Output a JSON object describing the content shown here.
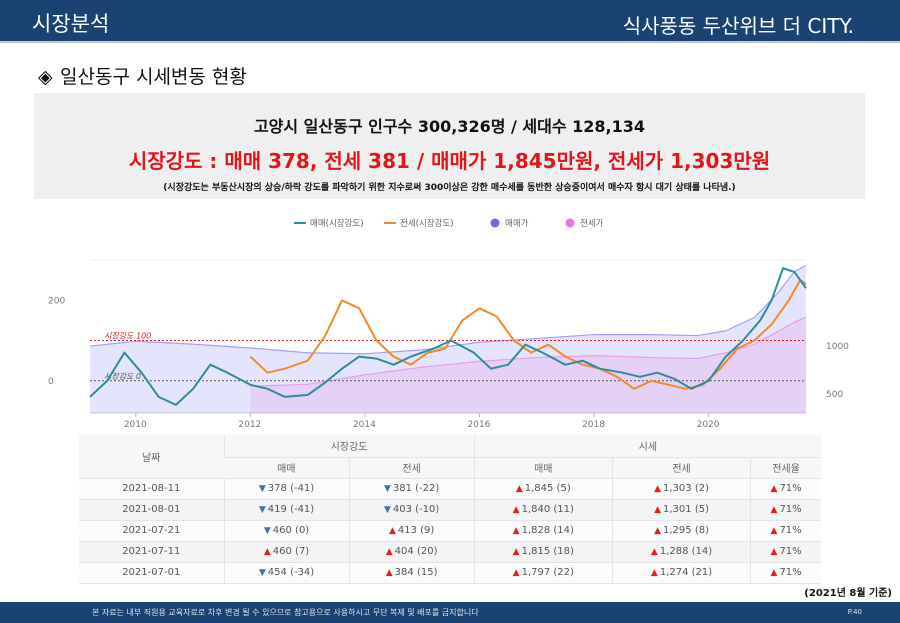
{
  "header": {
    "section": "시장분석",
    "project": "식사풍동 두산위브 더 CITY."
  },
  "subtitle": {
    "bullet": "◈",
    "text": "일산동구 시세변동 현황"
  },
  "summary": {
    "population_line": "고양시 일산동구 인구수 300,326명 / 세대수 128,134",
    "strength_line": "시장강도 : 매매 378, 전세 381 / 매매가 1,845만원, 전세가 1,303만원",
    "note_line": "(시장강도는 부동산시장의 상승/하락 강도를 파악하기 위한 지수로써 300이상은 강한 매수세를 동반한 상승중이여서 매수자 항시 대기 상태를 나타냄.)"
  },
  "chart_data": {
    "type": "line",
    "legend": [
      "매매(시장강도)",
      "전세(시장강도)",
      "매매가",
      "전세가"
    ],
    "x_ticks": [
      "2010",
      "2012",
      "2014",
      "2016",
      "2018",
      "2020"
    ],
    "x_range": [
      2009.2,
      2021.7
    ],
    "left_axis": {
      "ticks": [
        "200",
        "0"
      ],
      "range": [
        -80,
        300
      ]
    },
    "right_axis": {
      "ticks": [
        "1000",
        "500"
      ],
      "range": [
        300,
        1900
      ]
    },
    "reference_lines": [
      {
        "label": "시장강도 100",
        "value": 100,
        "color": "#e02020"
      },
      {
        "label": "시장강도 0",
        "value": 0,
        "color": "#555555"
      }
    ],
    "colors": {
      "sale_strength": "#2e8b9a",
      "jeonse_strength": "#f08a2a",
      "sale_price": "#6a6cf0",
      "jeonse_price": "#e878e0"
    },
    "series": [
      {
        "name": "매매(시장강도)",
        "x": [
          2009.2,
          2009.5,
          2009.8,
          2010.1,
          2010.4,
          2010.7,
          2011.0,
          2011.3,
          2011.6,
          2012.0,
          2012.3,
          2012.6,
          2013.0,
          2013.3,
          2013.6,
          2013.9,
          2014.2,
          2014.5,
          2014.8,
          2015.2,
          2015.5,
          2015.9,
          2016.2,
          2016.5,
          2016.8,
          2017.1,
          2017.5,
          2017.8,
          2018.1,
          2018.5,
          2018.8,
          2019.1,
          2019.4,
          2019.7,
          2020.0,
          2020.3,
          2020.6,
          2020.9,
          2021.1,
          2021.3,
          2021.5,
          2021.7
        ],
        "values": [
          -40,
          0,
          70,
          20,
          -40,
          -60,
          -20,
          40,
          20,
          -10,
          -20,
          -40,
          -35,
          -5,
          30,
          60,
          55,
          40,
          60,
          80,
          100,
          70,
          30,
          40,
          90,
          70,
          40,
          50,
          30,
          20,
          10,
          20,
          5,
          -20,
          0,
          60,
          100,
          150,
          200,
          280,
          270,
          230
        ]
      },
      {
        "name": "전세(시장강도)",
        "x": [
          2012.0,
          2012.3,
          2012.6,
          2013.0,
          2013.3,
          2013.6,
          2013.9,
          2014.2,
          2014.5,
          2014.8,
          2015.1,
          2015.4,
          2015.7,
          2016.0,
          2016.3,
          2016.6,
          2016.9,
          2017.2,
          2017.5,
          2017.8,
          2018.1,
          2018.4,
          2018.7,
          2019.0,
          2019.3,
          2019.6,
          2019.9,
          2020.2,
          2020.5,
          2020.8,
          2021.1,
          2021.4,
          2021.6,
          2021.7
        ],
        "values": [
          60,
          20,
          30,
          50,
          110,
          200,
          180,
          100,
          60,
          40,
          70,
          80,
          150,
          180,
          160,
          100,
          70,
          90,
          60,
          40,
          30,
          10,
          -20,
          0,
          -10,
          -20,
          -10,
          30,
          80,
          100,
          140,
          200,
          250,
          240
        ]
      },
      {
        "name": "매매가",
        "x": [
          2009.2,
          2010.0,
          2011.0,
          2012.0,
          2013.0,
          2014.0,
          2015.0,
          2016.0,
          2017.0,
          2018.0,
          2019.0,
          2019.8,
          2020.3,
          2020.8,
          2021.2,
          2021.5,
          2021.7
        ],
        "values": [
          1000,
          1050,
          1020,
          980,
          930,
          920,
          960,
          1040,
          1080,
          1120,
          1120,
          1110,
          1160,
          1300,
          1550,
          1780,
          1845
        ]
      },
      {
        "name": "전세가",
        "x": [
          2012.0,
          2013.0,
          2014.0,
          2015.0,
          2016.0,
          2017.0,
          2018.0,
          2019.0,
          2019.8,
          2020.3,
          2020.8,
          2021.2,
          2021.5,
          2021.7
        ],
        "values": [
          580,
          600,
          700,
          780,
          840,
          880,
          900,
          880,
          870,
          930,
          1020,
          1150,
          1250,
          1303
        ]
      }
    ]
  },
  "table": {
    "col_date": "날짜",
    "group_strength": "시장강도",
    "group_price": "시세",
    "sub_headers": [
      "매매",
      "전세",
      "매매",
      "전세",
      "전세율"
    ],
    "rows": [
      {
        "date": "2021-08-11",
        "cells": [
          {
            "dir": "down",
            "text": "378 (-41)"
          },
          {
            "dir": "down",
            "text": "381 (-22)"
          },
          {
            "dir": "up",
            "text": "1,845 (5)"
          },
          {
            "dir": "up",
            "text": "1,303 (2)"
          },
          {
            "dir": "up",
            "text": "71%"
          }
        ]
      },
      {
        "date": "2021-08-01",
        "cells": [
          {
            "dir": "down",
            "text": "419 (-41)"
          },
          {
            "dir": "down",
            "text": "403 (-10)"
          },
          {
            "dir": "up",
            "text": "1,840 (11)"
          },
          {
            "dir": "up",
            "text": "1,301 (5)"
          },
          {
            "dir": "up",
            "text": "71%"
          }
        ]
      },
      {
        "date": "2021-07-21",
        "cells": [
          {
            "dir": "down",
            "text": "460 (0)"
          },
          {
            "dir": "up",
            "text": "413 (9)"
          },
          {
            "dir": "up",
            "text": "1,828 (14)"
          },
          {
            "dir": "up",
            "text": "1,295 (8)"
          },
          {
            "dir": "up",
            "text": "71%"
          }
        ]
      },
      {
        "date": "2021-07-11",
        "cells": [
          {
            "dir": "up",
            "text": "460 (7)"
          },
          {
            "dir": "up",
            "text": "404 (20)"
          },
          {
            "dir": "up",
            "text": "1,815 (18)"
          },
          {
            "dir": "up",
            "text": "1,288 (14)"
          },
          {
            "dir": "up",
            "text": "71%"
          }
        ]
      },
      {
        "date": "2021-07-01",
        "cells": [
          {
            "dir": "down",
            "text": "454 (-34)"
          },
          {
            "dir": "up",
            "text": "384 (15)"
          },
          {
            "dir": "up",
            "text": "1,797 (22)"
          },
          {
            "dir": "up",
            "text": "1,274 (21)"
          },
          {
            "dir": "up",
            "text": "71%"
          }
        ]
      }
    ]
  },
  "basis_note": "(2021년 8월 기준)",
  "footer": {
    "note": "본 자료는 내부 직원용 교육자료로 차후 변경 될 수 있으므로 참고용으로 사용하시고 무단 복제 및 배포를 금지합니다",
    "page": "P.40"
  }
}
